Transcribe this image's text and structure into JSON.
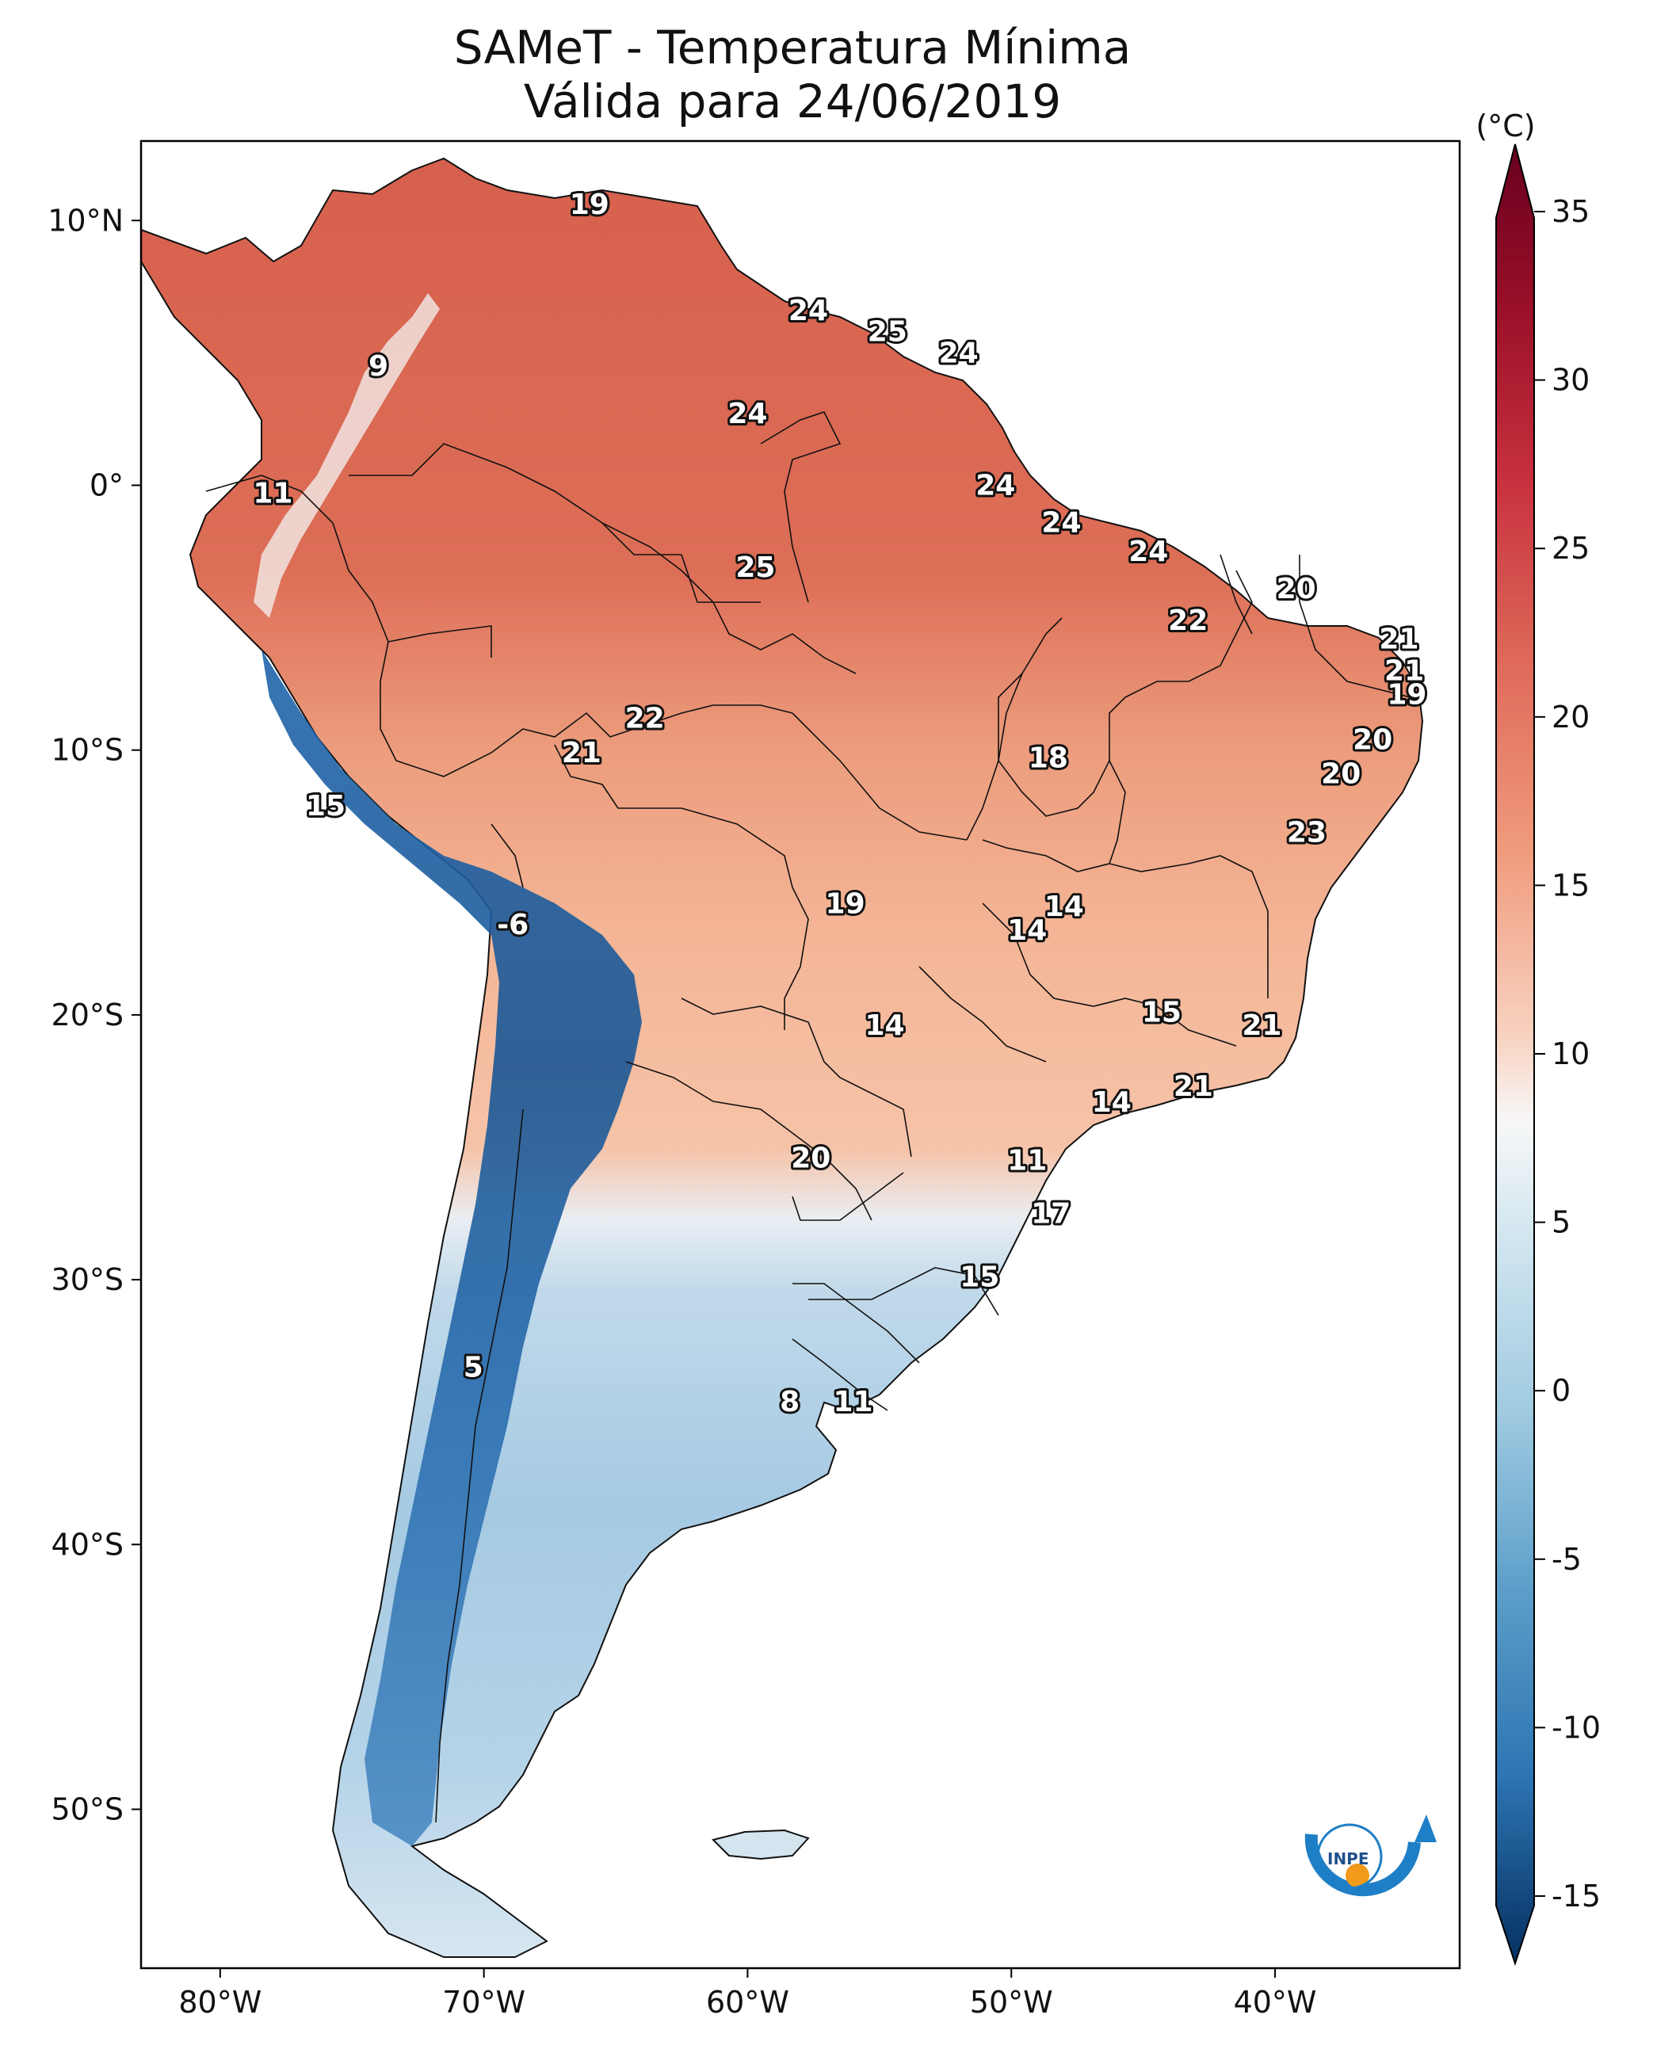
{
  "title_line1": "SAMeT - Temperatura Mínima",
  "title_line2": "Válida para 24/06/2019",
  "colorbar": {
    "unit_label": "(°C)",
    "ticks": [
      "35",
      "30",
      "25",
      "20",
      "15",
      "10",
      "5",
      "0",
      "-5",
      "-10",
      "-15"
    ],
    "min": -17,
    "max": 37,
    "colormap": "RdBu_r"
  },
  "axes": {
    "lat_labels": [
      "10°N",
      "0°",
      "10°S",
      "20°S",
      "30°S",
      "40°S",
      "50°S"
    ],
    "lon_labels": [
      "80°W",
      "70°W",
      "60°W",
      "50°W",
      "40°W"
    ]
  },
  "labels": [
    {
      "v": "19",
      "lon": -66.0,
      "lat": 10.6
    },
    {
      "v": "9",
      "lon": -74.0,
      "lat": 4.5
    },
    {
      "v": "24",
      "lon": -57.7,
      "lat": 6.6
    },
    {
      "v": "25",
      "lon": -54.7,
      "lat": 5.8
    },
    {
      "v": "24",
      "lon": -52.0,
      "lat": 5.0
    },
    {
      "v": "24",
      "lon": -60.0,
      "lat": 2.7
    },
    {
      "v": "11",
      "lon": -78.0,
      "lat": -0.3
    },
    {
      "v": "24",
      "lon": -50.6,
      "lat": -0.0
    },
    {
      "v": "24",
      "lon": -48.1,
      "lat": -1.4
    },
    {
      "v": "25",
      "lon": -59.7,
      "lat": -3.1
    },
    {
      "v": "24",
      "lon": -44.8,
      "lat": -2.5
    },
    {
      "v": "20",
      "lon": -39.2,
      "lat": -3.9
    },
    {
      "v": "22",
      "lon": -43.3,
      "lat": -5.1
    },
    {
      "v": "21",
      "lon": -35.3,
      "lat": -5.8
    },
    {
      "v": "21",
      "lon": -35.1,
      "lat": -7.0
    },
    {
      "v": "19",
      "lon": -35.0,
      "lat": -7.9
    },
    {
      "v": "22",
      "lon": -63.9,
      "lat": -8.8
    },
    {
      "v": "20",
      "lon": -36.3,
      "lat": -9.6
    },
    {
      "v": "21",
      "lon": -66.3,
      "lat": -10.1
    },
    {
      "v": "18",
      "lon": -48.6,
      "lat": -10.3
    },
    {
      "v": "20",
      "lon": -37.5,
      "lat": -10.9
    },
    {
      "v": "15",
      "lon": -76.0,
      "lat": -12.1
    },
    {
      "v": "23",
      "lon": -38.8,
      "lat": -13.1
    },
    {
      "v": "19",
      "lon": -56.3,
      "lat": -15.8
    },
    {
      "v": "14",
      "lon": -48.0,
      "lat": -15.9
    },
    {
      "v": "14",
      "lon": -49.4,
      "lat": -16.8
    },
    {
      "v": "-6",
      "lon": -68.9,
      "lat": -16.6
    },
    {
      "v": "15",
      "lon": -44.3,
      "lat": -19.9
    },
    {
      "v": "14",
      "lon": -54.8,
      "lat": -20.4
    },
    {
      "v": "21",
      "lon": -40.5,
      "lat": -20.4
    },
    {
      "v": "21",
      "lon": -43.1,
      "lat": -22.7
    },
    {
      "v": "14",
      "lon": -46.2,
      "lat": -23.3
    },
    {
      "v": "20",
      "lon": -57.6,
      "lat": -25.4
    },
    {
      "v": "11",
      "lon": -49.4,
      "lat": -25.5
    },
    {
      "v": "17",
      "lon": -48.5,
      "lat": -27.5
    },
    {
      "v": "15",
      "lon": -51.2,
      "lat": -29.9
    },
    {
      "v": "5",
      "lon": -70.4,
      "lat": -33.3
    },
    {
      "v": "8",
      "lon": -58.4,
      "lat": -34.6
    },
    {
      "v": "11",
      "lon": -56.0,
      "lat": -34.6
    }
  ]
}
